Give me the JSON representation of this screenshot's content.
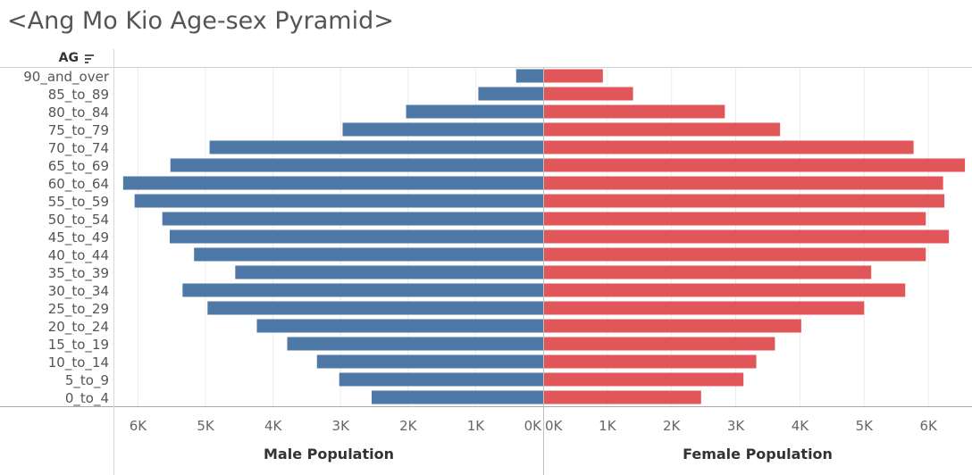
{
  "chart_data": {
    "type": "bar",
    "title": "<Ang Mo Kio Age-sex Pyramid>",
    "row_header": "AG",
    "categories": [
      "90_and_over",
      "85_to_89",
      "80_to_84",
      "75_to_79",
      "70_to_74",
      "65_to_69",
      "60_to_64",
      "55_to_59",
      "50_to_54",
      "45_to_49",
      "40_to_44",
      "35_to_39",
      "30_to_34",
      "25_to_29",
      "20_to_24",
      "15_to_19",
      "10_to_14",
      "5_to_9",
      "0_to_4"
    ],
    "series": [
      {
        "name": "Male Population",
        "color": "#4e79a7",
        "values": [
          400,
          960,
          2030,
          2970,
          4940,
          5520,
          6220,
          6050,
          5640,
          5530,
          5170,
          4560,
          5340,
          4970,
          4240,
          3790,
          3350,
          3020,
          2540
        ]
      },
      {
        "name": "Female Population",
        "color": "#e15759",
        "values": [
          930,
          1400,
          2830,
          3690,
          5770,
          6570,
          6230,
          6250,
          5960,
          6320,
          5960,
          5110,
          5640,
          5000,
          4020,
          3610,
          3320,
          3120,
          2460
        ]
      }
    ],
    "xlabel_left": "Male Population",
    "xlabel_right": "Female Population",
    "left_ticks": [
      "6K",
      "5K",
      "4K",
      "3K",
      "2K",
      "1K",
      "0K"
    ],
    "right_ticks": [
      "0K",
      "1K",
      "2K",
      "3K",
      "4K",
      "5K",
      "6K"
    ],
    "left_xlim": [
      0,
      6350
    ],
    "right_xlim": [
      0,
      6680
    ],
    "grid": true
  }
}
